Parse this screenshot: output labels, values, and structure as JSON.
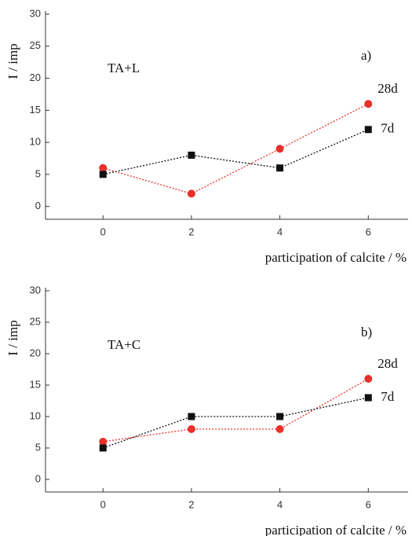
{
  "chart_data": [
    {
      "type": "line",
      "panel_label": "a)",
      "annotation": "TA+L",
      "x_label": "participation of calcite / %",
      "y_label": "I / imp",
      "x": [
        0,
        2,
        4,
        6
      ],
      "series": [
        {
          "name": "28d",
          "color": "#e8312a",
          "marker": "circle",
          "values": [
            6,
            2,
            9,
            16
          ]
        },
        {
          "name": "7d",
          "color": "#111111",
          "marker": "square",
          "values": [
            5,
            8,
            6,
            12
          ]
        }
      ],
      "xlim": [
        -1.3,
        6.9
      ],
      "ylim": [
        -2,
        30
      ],
      "xticks": [
        0,
        2,
        4,
        6
      ],
      "yticks": [
        0,
        5,
        10,
        15,
        20,
        25,
        30
      ]
    },
    {
      "type": "line",
      "panel_label": "b)",
      "annotation": "TA+C",
      "x_label": "participation of calcite / %",
      "y_label": "I / imp",
      "x": [
        0,
        2,
        4,
        6
      ],
      "series": [
        {
          "name": "28d",
          "color": "#e8312a",
          "marker": "circle",
          "values": [
            6,
            8,
            8,
            16
          ]
        },
        {
          "name": "7d",
          "color": "#111111",
          "marker": "square",
          "values": [
            5,
            10,
            10,
            13
          ]
        }
      ],
      "xlim": [
        -1.3,
        6.9
      ],
      "ylim": [
        -2,
        30
      ],
      "xticks": [
        0,
        2,
        4,
        6
      ],
      "yticks": [
        0,
        5,
        10,
        15,
        20,
        25,
        30
      ]
    }
  ]
}
